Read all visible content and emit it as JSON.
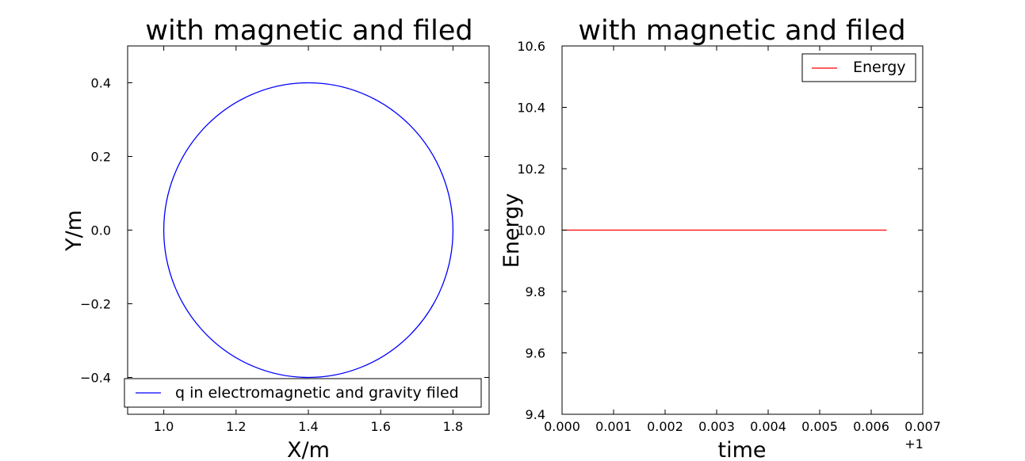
{
  "chart_data": [
    {
      "type": "line",
      "title": "with magnetic and filed",
      "xlabel": "X/m",
      "ylabel": "Y/m",
      "xlim": [
        0.9,
        1.9
      ],
      "ylim": [
        -0.5,
        0.5
      ],
      "xticks": [
        1.0,
        1.2,
        1.4,
        1.6,
        1.8
      ],
      "xtick_labels": [
        "1.0",
        "1.2",
        "1.4",
        "1.6",
        "1.8"
      ],
      "yticks": [
        0.4,
        0.2,
        0.0,
        -0.2,
        -0.4
      ],
      "ytick_labels": [
        "0.4",
        "0.2",
        "0.0",
        "−0.2",
        "−0.4"
      ],
      "grid": false,
      "legend_position": "bottom",
      "series": [
        {
          "name": "q in electromagnetic and gravity filed",
          "color": "#0000ff",
          "shape": "circle",
          "center": [
            1.4,
            0.0
          ],
          "radius": 0.4
        }
      ]
    },
    {
      "type": "line",
      "title": "with magnetic and filed",
      "xlabel": "time",
      "ylabel": "Energy",
      "xlim": [
        0.0,
        0.007
      ],
      "ylim": [
        9.4,
        10.6
      ],
      "x_offset_label": "+1",
      "xticks": [
        0.0,
        0.001,
        0.002,
        0.003,
        0.004,
        0.005,
        0.006,
        0.007
      ],
      "xtick_labels": [
        "0.000",
        "0.001",
        "0.002",
        "0.003",
        "0.004",
        "0.005",
        "0.006",
        "0.007"
      ],
      "yticks": [
        10.6,
        10.4,
        10.2,
        10.0,
        9.8,
        9.6,
        9.4
      ],
      "ytick_labels": [
        "10.6",
        "10.4",
        "10.2",
        "10.0",
        "9.8",
        "9.6",
        "9.4"
      ],
      "grid": false,
      "legend_position": "upper right",
      "series": [
        {
          "name": "Energy",
          "color": "#ff0000",
          "x": [
            0.0,
            0.0063
          ],
          "y": [
            10.0,
            10.0
          ]
        }
      ]
    }
  ]
}
